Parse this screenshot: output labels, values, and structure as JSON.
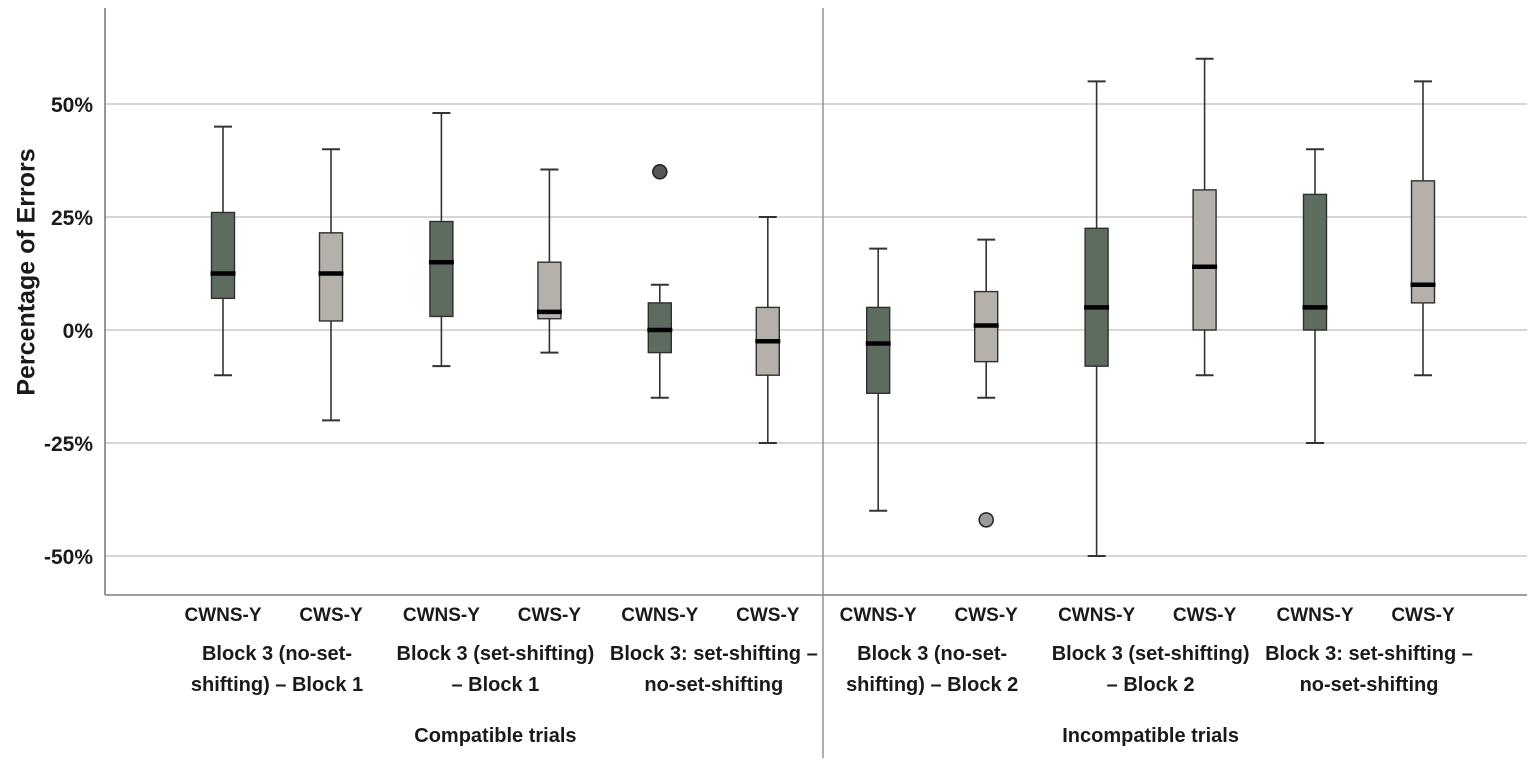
{
  "chart_data": {
    "type": "boxplot",
    "title": "",
    "ylabel": "Percentage of Errors",
    "ylim": [
      -58,
      71
    ],
    "grid": "horizontal",
    "yticks": [
      {
        "value": 50,
        "label": "50%"
      },
      {
        "value": 25,
        "label": "25%"
      },
      {
        "value": 0,
        "label": "0%"
      },
      {
        "value": -25,
        "label": "-25%"
      },
      {
        "value": -50,
        "label": "-50%"
      }
    ],
    "series_colors": {
      "CWNS-Y": "#5e6c60",
      "CWS-Y": "#b6b0aa"
    },
    "outlier_colors": {
      "CWNS-Y": "#565656",
      "CWS-Y": "#9a9a9a"
    },
    "sections": [
      {
        "label": "Compatible trials",
        "group_indices": [
          0,
          1,
          2
        ]
      },
      {
        "label": "Incompatible trials",
        "group_indices": [
          3,
          4,
          5
        ]
      }
    ],
    "groups": [
      {
        "label_lines": [
          "Block 3 (no-set-",
          "shifting) – Block 1"
        ],
        "boxes": [
          {
            "name": "CWNS-Y",
            "whisker_low": -10,
            "q1": 7,
            "median": 12.5,
            "q3": 26,
            "whisker_high": 45,
            "outliers": []
          },
          {
            "name": "CWS-Y",
            "whisker_low": -20,
            "q1": 2,
            "median": 12.5,
            "q3": 21.5,
            "whisker_high": 40,
            "outliers": []
          }
        ]
      },
      {
        "label_lines": [
          "Block 3 (set-shifting)",
          "– Block 1"
        ],
        "boxes": [
          {
            "name": "CWNS-Y",
            "whisker_low": -8,
            "q1": 3,
            "median": 15,
            "q3": 24,
            "whisker_high": 48,
            "outliers": []
          },
          {
            "name": "CWS-Y",
            "whisker_low": -5,
            "q1": 2.5,
            "median": 4,
            "q3": 15,
            "whisker_high": 35.5,
            "outliers": []
          }
        ]
      },
      {
        "label_lines": [
          "Block 3: set-shifting –",
          "no-set-shifting"
        ],
        "boxes": [
          {
            "name": "CWNS-Y",
            "whisker_low": -15,
            "q1": -5,
            "median": 0,
            "q3": 6,
            "whisker_high": 10,
            "outliers": [
              35
            ]
          },
          {
            "name": "CWS-Y",
            "whisker_low": -25,
            "q1": -10,
            "median": -2.5,
            "q3": 5,
            "whisker_high": 25,
            "outliers": []
          }
        ]
      },
      {
        "label_lines": [
          "Block 3 (no-set-",
          "shifting) – Block 2"
        ],
        "boxes": [
          {
            "name": "CWNS-Y",
            "whisker_low": -40,
            "q1": -14,
            "median": -3,
            "q3": 5,
            "whisker_high": 18,
            "outliers": []
          },
          {
            "name": "CWS-Y",
            "whisker_low": -15,
            "q1": -7,
            "median": 1,
            "q3": 8.5,
            "whisker_high": 20,
            "outliers": [
              -42
            ]
          }
        ]
      },
      {
        "label_lines": [
          "Block 3 (set-shifting)",
          "– Block 2"
        ],
        "boxes": [
          {
            "name": "CWNS-Y",
            "whisker_low": -50,
            "q1": -8,
            "median": 5,
            "q3": 22.5,
            "whisker_high": 55,
            "outliers": []
          },
          {
            "name": "CWS-Y",
            "whisker_low": -10,
            "q1": 0,
            "median": 14,
            "q3": 31,
            "whisker_high": 60,
            "outliers": []
          }
        ]
      },
      {
        "label_lines": [
          "Block 3: set-shifting –",
          "no-set-shifting"
        ],
        "boxes": [
          {
            "name": "CWNS-Y",
            "whisker_low": -25,
            "q1": 0,
            "median": 5,
            "q3": 30,
            "whisker_high": 40,
            "outliers": []
          },
          {
            "name": "CWS-Y",
            "whisker_low": -10,
            "q1": 6,
            "median": 10,
            "q3": 33,
            "whisker_high": 55,
            "outliers": []
          }
        ]
      }
    ]
  }
}
